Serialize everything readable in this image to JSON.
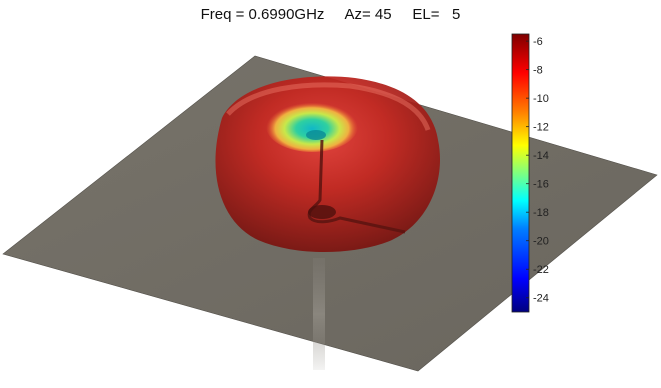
{
  "title": {
    "freq_label": "Freq = 0.6990GHz",
    "az_label": "Az= 45",
    "el_label": "EL=   5"
  },
  "chart_data": {
    "type": "surface-3d",
    "view": {
      "azimuth": 45,
      "elevation": 5
    },
    "frequency_ghz": 0.699,
    "colorbar": {
      "min": -25,
      "max": -5.5,
      "ticks": [
        -6,
        -8,
        -10,
        -12,
        -14,
        -16,
        -18,
        -20,
        -22,
        -24
      ],
      "colormap": [
        "#00007f",
        "#0000ff",
        "#007fff",
        "#00ffff",
        "#7fff7f",
        "#ffff00",
        "#ff7f00",
        "#ff0000",
        "#7f0000"
      ]
    },
    "ground_plane_color": "#6f6a60",
    "pattern_color_body": "#b8221c",
    "pattern_color_top_null": "#18c8c0"
  }
}
